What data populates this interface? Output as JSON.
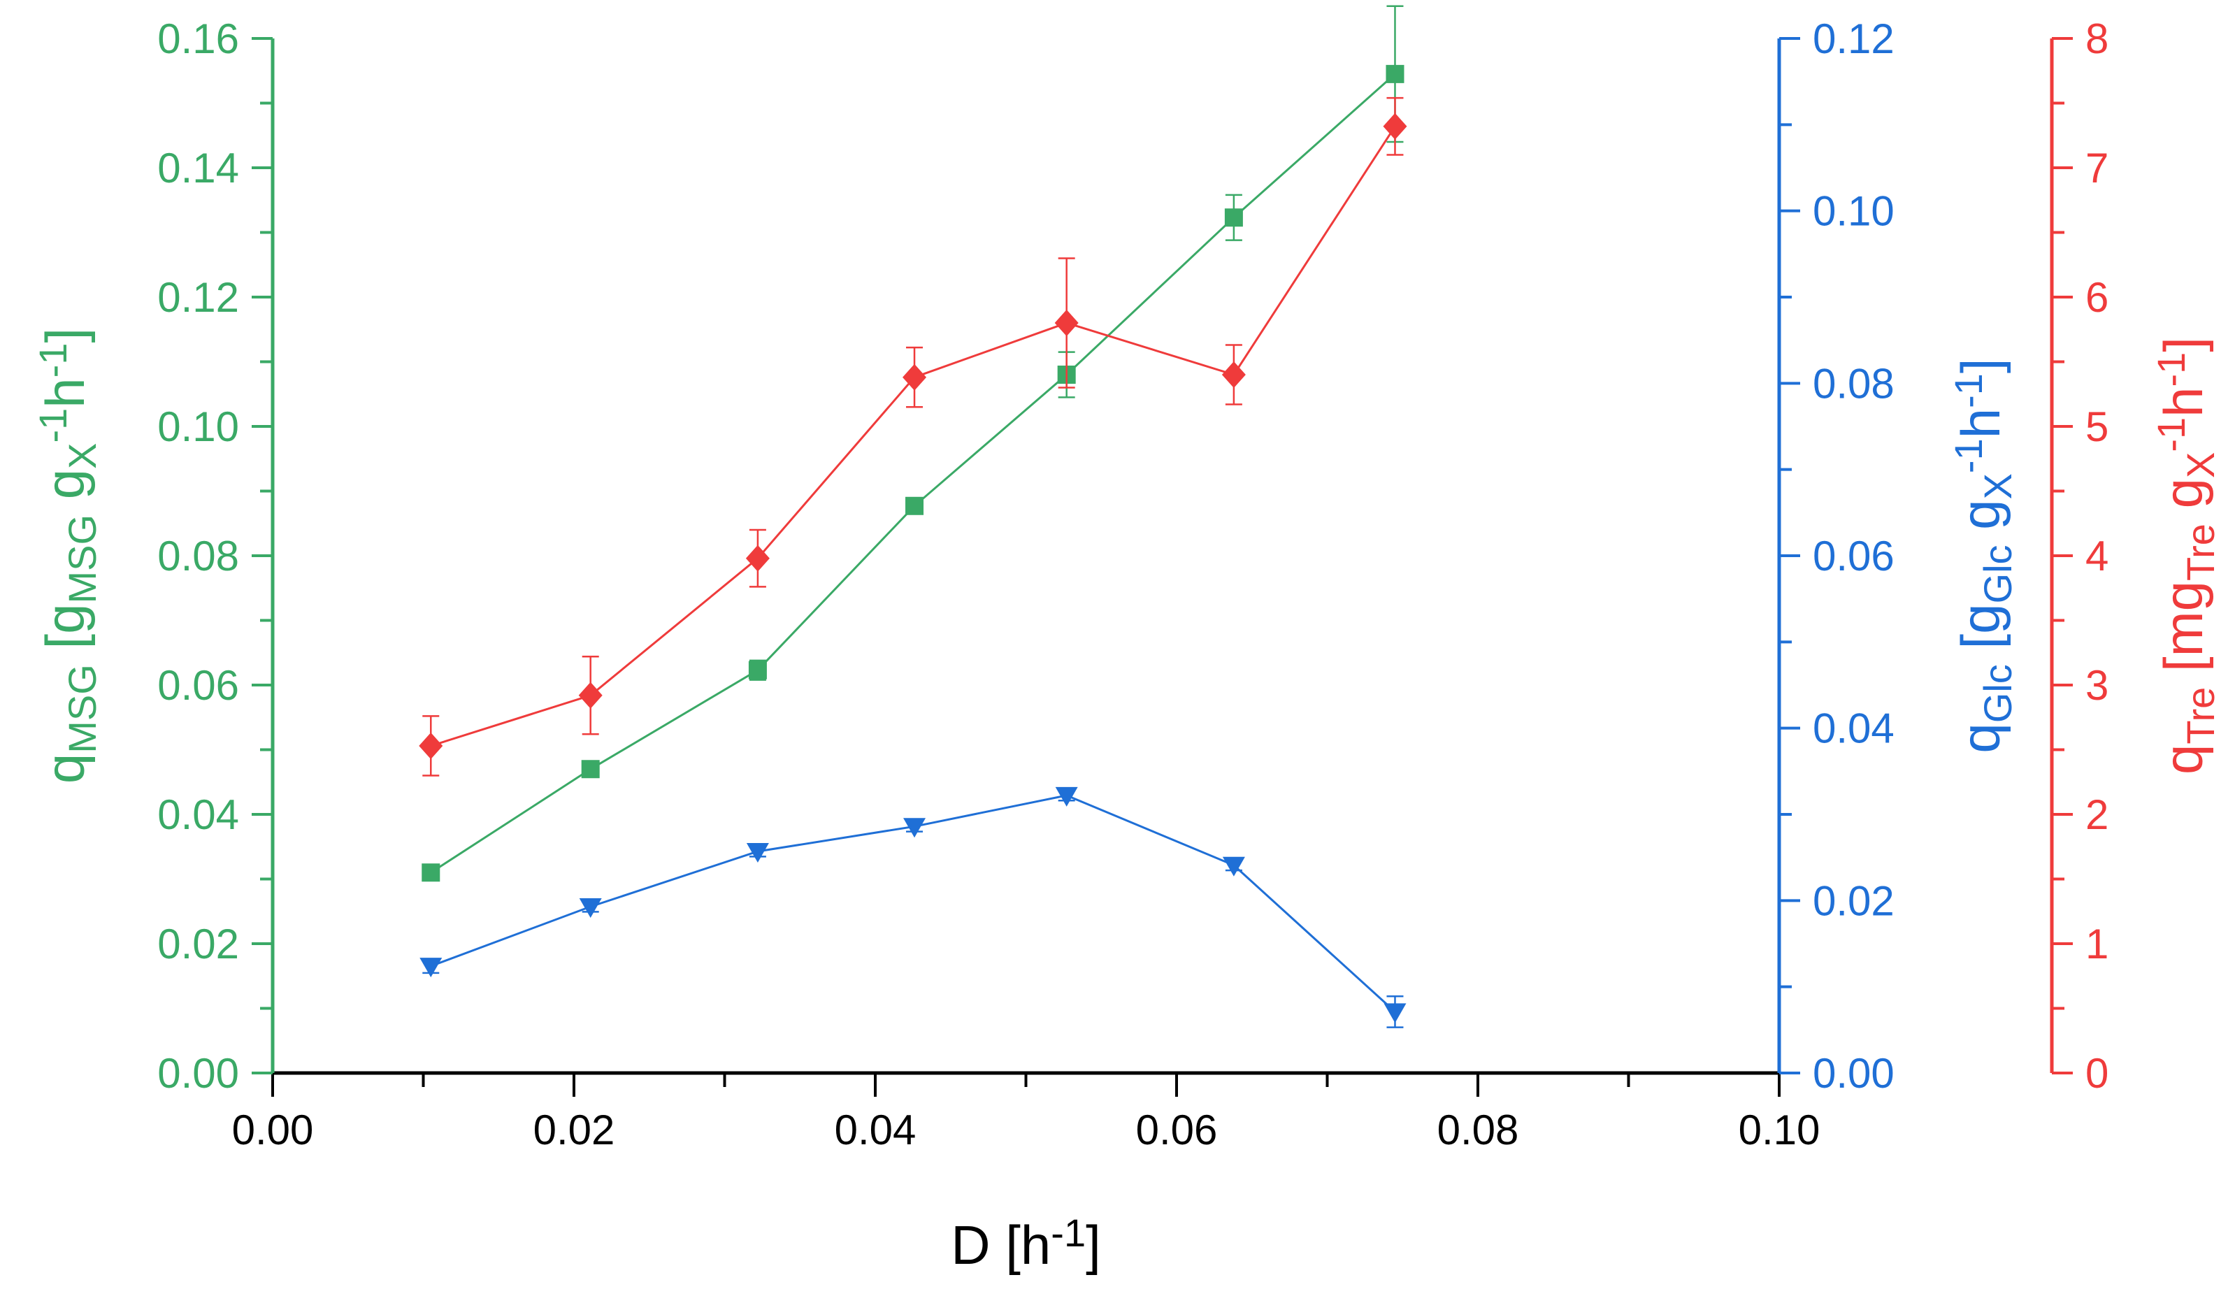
{
  "chart_data": {
    "type": "line",
    "xlabel": {
      "base": "D [h",
      "sup": "-1",
      "close": "]"
    },
    "xlim": [
      0.0,
      0.1
    ],
    "x_ticks": [
      "0.00",
      "0.02",
      "0.04",
      "0.06",
      "0.08",
      "0.10"
    ],
    "axes": {
      "left": {
        "color": "#3aa966",
        "ylim": [
          0.0,
          0.16
        ],
        "ticks": [
          "0.00",
          "0.02",
          "0.04",
          "0.06",
          "0.08",
          "0.10",
          "0.12",
          "0.14",
          "0.16"
        ],
        "label_parts": [
          {
            "t": "q"
          },
          {
            "t": "MSG",
            "s": "sub"
          },
          {
            "t": " [g"
          },
          {
            "t": "MSG",
            "s": "sub"
          },
          {
            "t": " g"
          },
          {
            "t": "X",
            "s": "sub"
          },
          {
            "t": "-1",
            "s": "sup"
          },
          {
            "t": "h"
          },
          {
            "t": "-1",
            "s": "sup"
          },
          {
            "t": "]"
          }
        ]
      },
      "right1": {
        "color": "#1f6fd6",
        "ylim": [
          0.0,
          0.12
        ],
        "ticks": [
          "0.00",
          "0.02",
          "0.04",
          "0.06",
          "0.08",
          "0.10",
          "0.12"
        ],
        "label_parts": [
          {
            "t": "q"
          },
          {
            "t": "Glc",
            "s": "sub"
          },
          {
            "t": " [g"
          },
          {
            "t": "Glc",
            "s": "sub"
          },
          {
            "t": " g"
          },
          {
            "t": "X",
            "s": "sub"
          },
          {
            "t": "-1",
            "s": "sup"
          },
          {
            "t": "h"
          },
          {
            "t": "-1",
            "s": "sup"
          },
          {
            "t": "]"
          }
        ]
      },
      "right2": {
        "color": "#ef3b3b",
        "ylim": [
          0,
          8
        ],
        "ticks": [
          "0",
          "1",
          "2",
          "3",
          "4",
          "5",
          "6",
          "7",
          "8"
        ],
        "label_parts": [
          {
            "t": "q"
          },
          {
            "t": "Tre",
            "s": "sub"
          },
          {
            "t": " [mg"
          },
          {
            "t": "Tre",
            "s": "sub"
          },
          {
            "t": " g"
          },
          {
            "t": "X",
            "s": "sub"
          },
          {
            "t": "-1",
            "s": "sup"
          },
          {
            "t": "h"
          },
          {
            "t": "-1",
            "s": "sup"
          },
          {
            "t": "]"
          }
        ]
      }
    },
    "series": [
      {
        "name": "qMSG",
        "axis": "left",
        "marker": "square",
        "color": "#3aa966",
        "x": [
          0.0105,
          0.0211,
          0.0322,
          0.0426,
          0.0527,
          0.0638,
          0.0745
        ],
        "y": [
          0.031,
          0.047,
          0.0623,
          0.0877,
          0.108,
          0.1323,
          0.1545
        ],
        "err": [
          0.0012,
          0.0007,
          0.0015,
          0.0006,
          0.0035,
          0.0035,
          0.0105
        ]
      },
      {
        "name": "qGlc",
        "axis": "right1",
        "marker": "triangle-down",
        "color": "#1f6fd6",
        "x": [
          0.0105,
          0.0211,
          0.0322,
          0.0426,
          0.0527,
          0.0638,
          0.0745
        ],
        "y": [
          0.0124,
          0.0193,
          0.0257,
          0.0286,
          0.0322,
          0.0241,
          0.0071
        ],
        "err": [
          0.0008,
          0.0006,
          0.0006,
          0.0006,
          0.0006,
          0.0006,
          0.0018
        ]
      },
      {
        "name": "qTre",
        "axis": "right2",
        "marker": "diamond",
        "color": "#ef3b3b",
        "x": [
          0.0105,
          0.0211,
          0.0322,
          0.0426,
          0.0527,
          0.0638,
          0.0745
        ],
        "y": [
          2.53,
          2.92,
          3.98,
          5.38,
          5.8,
          5.4,
          7.32
        ],
        "err": [
          0.23,
          0.3,
          0.22,
          0.23,
          0.5,
          0.23,
          0.22
        ]
      }
    ]
  }
}
